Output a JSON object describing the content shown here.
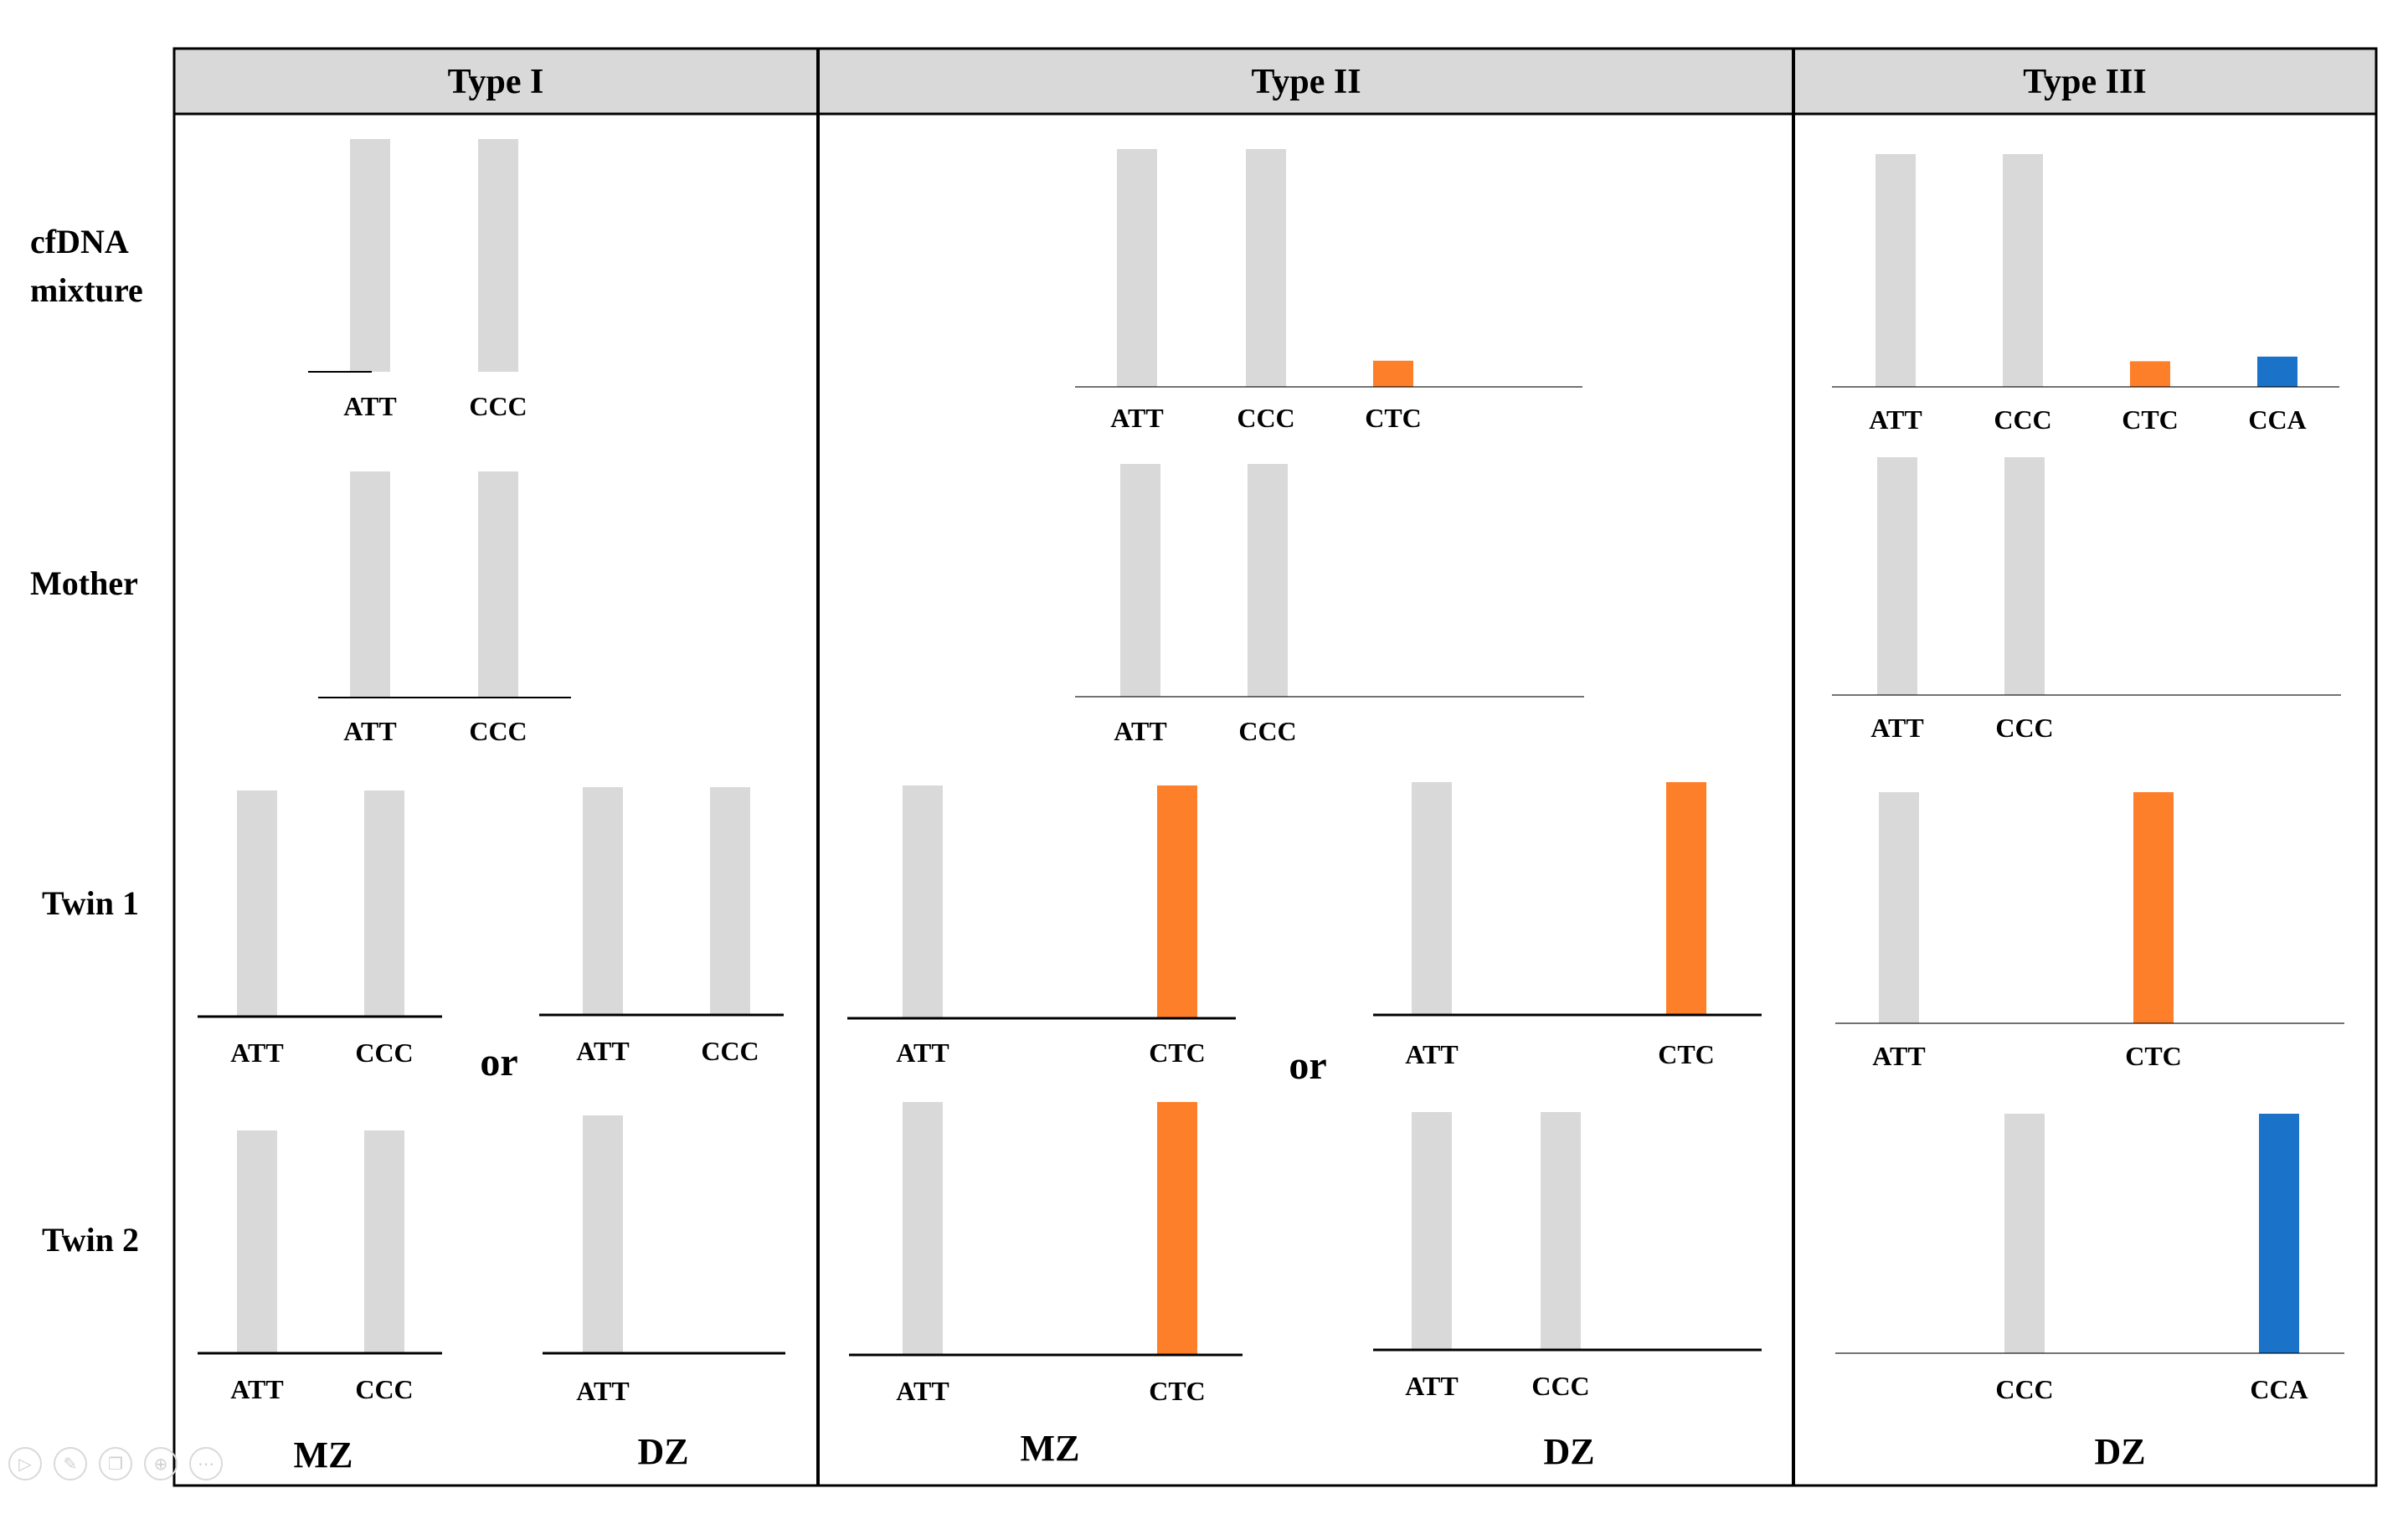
{
  "colors": {
    "gray": "#d9d9d9",
    "orange": "#fd7f2a",
    "blue": "#1a73c8",
    "header_bg": "#d9d9d9",
    "line": "#000000"
  },
  "columns": [
    {
      "id": "type-1",
      "title": "Type I"
    },
    {
      "id": "type-2",
      "title": "Type II"
    },
    {
      "id": "type-3",
      "title": "Type III"
    }
  ],
  "rows": [
    {
      "id": "cfdna",
      "lines": [
        "cfDNA",
        "mixture"
      ]
    },
    {
      "id": "mother",
      "lines": [
        "Mother"
      ]
    },
    {
      "id": "twin1",
      "lines": [
        "Twin 1"
      ]
    },
    {
      "id": "twin2",
      "lines": [
        "Twin 2"
      ]
    }
  ],
  "separators": [
    "or",
    "or"
  ],
  "footers": [
    "MZ",
    "DZ",
    "MZ",
    "DZ",
    "DZ"
  ],
  "alleles": {
    "type1_cfdna": [
      {
        "label": "ATT",
        "color": "gray",
        "level": 1
      },
      {
        "label": "CCC",
        "color": "gray",
        "level": 1
      }
    ],
    "type1_mother": [
      {
        "label": "ATT",
        "color": "gray",
        "level": 1
      },
      {
        "label": "CCC",
        "color": "gray",
        "level": 1
      }
    ],
    "type1_mz_twin1": [
      {
        "label": "ATT",
        "color": "gray",
        "level": 1
      },
      {
        "label": "CCC",
        "color": "gray",
        "level": 1
      }
    ],
    "type1_dz_twin1": [
      {
        "label": "ATT",
        "color": "gray",
        "level": 1
      },
      {
        "label": "CCC",
        "color": "gray",
        "level": 1
      }
    ],
    "type1_mz_twin2": [
      {
        "label": "ATT",
        "color": "gray",
        "level": 1
      },
      {
        "label": "CCC",
        "color": "gray",
        "level": 1
      }
    ],
    "type1_dz_twin2": [
      {
        "label": "ATT",
        "color": "gray",
        "level": 1
      }
    ],
    "type2_cfdna": [
      {
        "label": "ATT",
        "color": "gray",
        "level": 1
      },
      {
        "label": "CCC",
        "color": "gray",
        "level": 1
      },
      {
        "label": "CTC",
        "color": "orange",
        "level": 0.11
      }
    ],
    "type2_mother": [
      {
        "label": "ATT",
        "color": "gray",
        "level": 1
      },
      {
        "label": "CCC",
        "color": "gray",
        "level": 1
      }
    ],
    "type2_mz_twin1": [
      {
        "label": "ATT",
        "color": "gray",
        "level": 1
      },
      {
        "label": "CTC",
        "color": "orange",
        "level": 1
      }
    ],
    "type2_dz_twin1": [
      {
        "label": "ATT",
        "color": "gray",
        "level": 1
      },
      {
        "label": "CTC",
        "color": "orange",
        "level": 1
      }
    ],
    "type2_mz_twin2": [
      {
        "label": "ATT",
        "color": "gray",
        "level": 1
      },
      {
        "label": "CTC",
        "color": "orange",
        "level": 1
      }
    ],
    "type2_dz_twin2": [
      {
        "label": "ATT",
        "color": "gray",
        "level": 1
      },
      {
        "label": "CCC",
        "color": "gray",
        "level": 1
      }
    ],
    "type3_cfdna": [
      {
        "label": "ATT",
        "color": "gray",
        "level": 1
      },
      {
        "label": "CCC",
        "color": "gray",
        "level": 1
      },
      {
        "label": "CTC",
        "color": "orange",
        "level": 0.11
      },
      {
        "label": "CCA",
        "color": "blue",
        "level": 0.13
      }
    ],
    "type3_mother": [
      {
        "label": "ATT",
        "color": "gray",
        "level": 1
      },
      {
        "label": "CCC",
        "color": "gray",
        "level": 1
      }
    ],
    "type3_twin1": [
      {
        "label": "ATT",
        "color": "gray",
        "level": 1
      },
      {
        "label": "CTC",
        "color": "orange",
        "level": 1
      }
    ],
    "type3_twin2": [
      {
        "label": "CCC",
        "color": "gray",
        "level": 1
      },
      {
        "label": "CCA",
        "color": "blue",
        "level": 1
      }
    ]
  }
}
